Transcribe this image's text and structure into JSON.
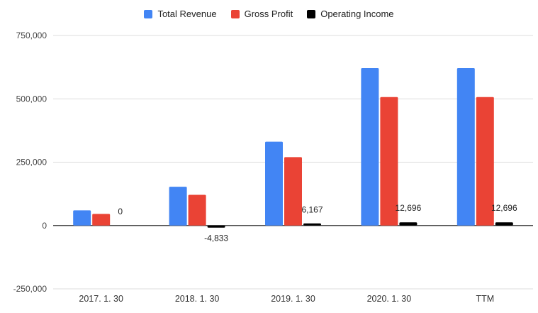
{
  "chart_data": {
    "type": "bar",
    "categories": [
      "2017. 1. 30",
      "2018. 1. 30",
      "2019. 1. 30",
      "2020. 1. 30",
      "TTM"
    ],
    "series": [
      {
        "name": "Total Revenue",
        "color": "#4285f4",
        "values": [
          60000,
          153000,
          331000,
          621000,
          621000
        ]
      },
      {
        "name": "Gross Profit",
        "color": "#ea4335",
        "values": [
          46000,
          121000,
          270000,
          507000,
          507000
        ]
      },
      {
        "name": "Operating Income",
        "color": "#000000",
        "values": [
          0,
          -4833,
          6167,
          12696,
          12696
        ]
      }
    ],
    "data_labels": {
      "series": "Operating Income",
      "labels": [
        "0",
        "-4,833",
        "6,167",
        "12,696",
        "12,696"
      ]
    },
    "ylim": [
      -250000,
      750000
    ],
    "yticks": [
      {
        "value": 750000,
        "label": "750,000"
      },
      {
        "value": 500000,
        "label": "500,000"
      },
      {
        "value": 250000,
        "label": "250,000"
      },
      {
        "value": 0,
        "label": "0"
      },
      {
        "value": -250000,
        "label": "-250,000"
      }
    ],
    "grid": true,
    "legend_position": "top-center",
    "title": "",
    "xlabel": "",
    "ylabel": ""
  }
}
